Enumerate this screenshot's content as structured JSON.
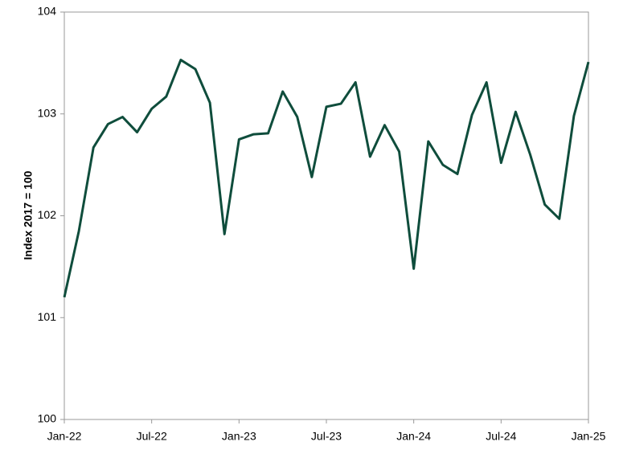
{
  "chart_data": {
    "type": "line",
    "y_label": "Index 2017 = 100",
    "categories": [
      "Jan-22",
      null,
      null,
      null,
      null,
      null,
      "Jul-22",
      null,
      null,
      null,
      null,
      null,
      "Jan-23",
      null,
      null,
      null,
      null,
      null,
      "Jul-23",
      null,
      null,
      null,
      null,
      null,
      "Jan-24",
      null,
      null,
      null,
      null,
      null,
      "Jul-24",
      null,
      null,
      null,
      null,
      null,
      "Jan-25"
    ],
    "series": [
      {
        "name": "Index",
        "color": "#0f4d3c",
        "values": [
          101.2,
          101.85,
          102.67,
          102.9,
          102.97,
          102.82,
          103.05,
          103.17,
          103.53,
          103.44,
          103.11,
          101.82,
          102.75,
          102.8,
          102.81,
          103.22,
          102.97,
          102.38,
          103.07,
          103.1,
          103.31,
          102.58,
          102.89,
          102.63,
          101.48,
          102.73,
          102.5,
          102.41,
          102.99,
          103.31,
          102.52,
          103.02,
          102.6,
          102.11,
          101.97,
          102.98,
          103.51
        ]
      }
    ],
    "ylim": [
      100,
      104
    ],
    "yticks": [
      100,
      101,
      102,
      103,
      104
    ]
  }
}
